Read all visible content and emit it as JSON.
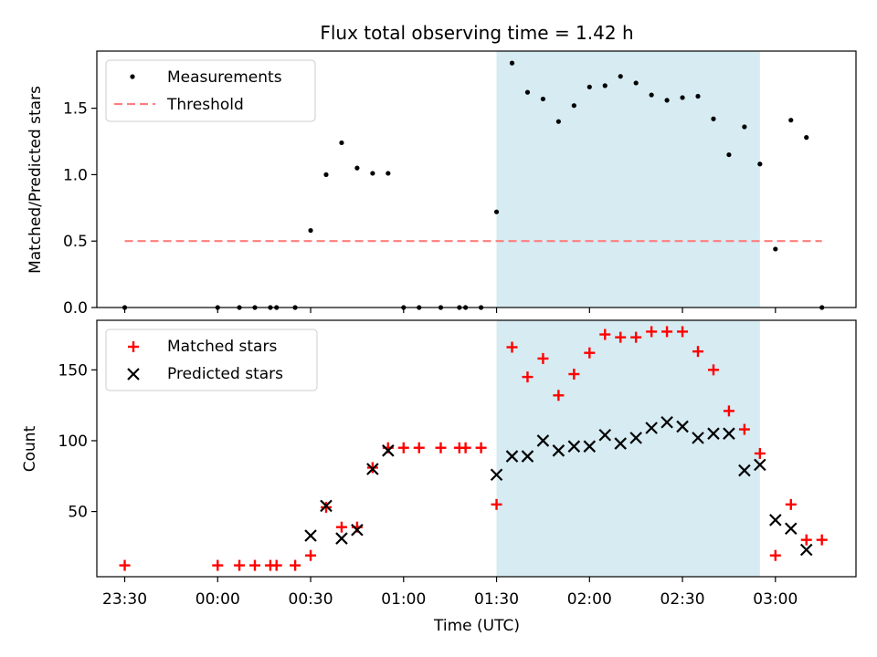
{
  "chart_data": [
    {
      "type": "scatter",
      "title": "Flux total observing time = 1.42 h",
      "xlabel": "",
      "ylabel": "Matched/Predicted stars",
      "ylim": [
        0,
        1.93
      ],
      "xlim": [
        "23:21",
        "03:26"
      ],
      "yticks": [
        0.0,
        0.5,
        1.0,
        1.5
      ],
      "ytick_labels": [
        "0.0",
        "0.5",
        "1.0",
        "1.5"
      ],
      "shaded_interval": {
        "start": "01:30",
        "end": "02:55",
        "color": "#add8e6"
      },
      "legend": {
        "placement": "top-left",
        "entries": [
          "Measurements",
          "Threshold"
        ]
      },
      "series": [
        {
          "name": "Measurements",
          "kind": "scatter",
          "color": "#000000",
          "points": [
            [
              "23:30",
              0.0
            ],
            [
              "00:00",
              0.0
            ],
            [
              "00:07",
              0.0
            ],
            [
              "00:12",
              0.0
            ],
            [
              "00:17",
              0.0
            ],
            [
              "00:19",
              0.0
            ],
            [
              "00:25",
              0.0
            ],
            [
              "00:30",
              0.58
            ],
            [
              "00:35",
              1.0
            ],
            [
              "00:40",
              1.24
            ],
            [
              "00:45",
              1.05
            ],
            [
              "00:50",
              1.01
            ],
            [
              "00:55",
              1.01
            ],
            [
              "01:00",
              0.0
            ],
            [
              "01:05",
              0.0
            ],
            [
              "01:12",
              0.0
            ],
            [
              "01:18",
              0.0
            ],
            [
              "01:20",
              0.0
            ],
            [
              "01:25",
              0.0
            ],
            [
              "01:30",
              0.72
            ],
            [
              "01:35",
              1.84
            ],
            [
              "01:40",
              1.62
            ],
            [
              "01:45",
              1.57
            ],
            [
              "01:50",
              1.4
            ],
            [
              "01:55",
              1.52
            ],
            [
              "02:00",
              1.66
            ],
            [
              "02:05",
              1.67
            ],
            [
              "02:10",
              1.74
            ],
            [
              "02:15",
              1.69
            ],
            [
              "02:20",
              1.6
            ],
            [
              "02:25",
              1.56
            ],
            [
              "02:30",
              1.58
            ],
            [
              "02:35",
              1.59
            ],
            [
              "02:40",
              1.42
            ],
            [
              "02:45",
              1.15
            ],
            [
              "02:50",
              1.36
            ],
            [
              "02:55",
              1.08
            ],
            [
              "03:00",
              0.44
            ],
            [
              "03:05",
              1.41
            ],
            [
              "03:10",
              1.28
            ],
            [
              "03:15",
              0.0
            ]
          ]
        },
        {
          "name": "Threshold",
          "kind": "dashed-line",
          "color": "#ff7f7f",
          "points": [
            [
              "23:30",
              0.5
            ],
            [
              "03:15",
              0.5
            ]
          ]
        }
      ]
    },
    {
      "type": "scatter",
      "title": "",
      "xlabel": "Time (UTC)",
      "ylabel": "Count",
      "ylim": [
        4,
        185
      ],
      "xlim": [
        "23:21",
        "03:26"
      ],
      "yticks": [
        50,
        100,
        150
      ],
      "ytick_labels": [
        "50",
        "100",
        "150"
      ],
      "xticks": [
        "23:30",
        "00:00",
        "00:30",
        "01:00",
        "01:30",
        "02:00",
        "02:30",
        "03:00"
      ],
      "shaded_interval": {
        "start": "01:30",
        "end": "02:55",
        "color": "#add8e6"
      },
      "legend": {
        "placement": "top-left",
        "entries": [
          "Matched stars",
          "Predicted stars"
        ]
      },
      "series": [
        {
          "name": "Matched stars",
          "kind": "plus",
          "color": "#ff0000",
          "points": [
            [
              "23:30",
              12
            ],
            [
              "00:00",
              12
            ],
            [
              "00:07",
              12
            ],
            [
              "00:12",
              12
            ],
            [
              "00:17",
              12
            ],
            [
              "00:19",
              12
            ],
            [
              "00:25",
              12
            ],
            [
              "00:30",
              19
            ],
            [
              "00:35",
              53
            ],
            [
              "00:40",
              39
            ],
            [
              "00:45",
              39
            ],
            [
              "00:50",
              81
            ],
            [
              "00:55",
              95
            ],
            [
              "01:00",
              95
            ],
            [
              "01:05",
              95
            ],
            [
              "01:12",
              95
            ],
            [
              "01:18",
              95
            ],
            [
              "01:20",
              95
            ],
            [
              "01:25",
              95
            ],
            [
              "01:30",
              55
            ],
            [
              "01:35",
              166
            ],
            [
              "01:40",
              145
            ],
            [
              "01:45",
              158
            ],
            [
              "01:50",
              132
            ],
            [
              "01:55",
              147
            ],
            [
              "02:00",
              162
            ],
            [
              "02:05",
              175
            ],
            [
              "02:10",
              173
            ],
            [
              "02:15",
              173
            ],
            [
              "02:20",
              177
            ],
            [
              "02:25",
              177
            ],
            [
              "02:30",
              177
            ],
            [
              "02:35",
              163
            ],
            [
              "02:40",
              150
            ],
            [
              "02:45",
              121
            ],
            [
              "02:50",
              108
            ],
            [
              "02:55",
              91
            ],
            [
              "03:00",
              19
            ],
            [
              "03:05",
              55
            ],
            [
              "03:10",
              30
            ],
            [
              "03:15",
              30
            ]
          ]
        },
        {
          "name": "Predicted stars",
          "kind": "x",
          "color": "#000000",
          "points": [
            [
              "00:30",
              33
            ],
            [
              "00:35",
              54
            ],
            [
              "00:40",
              31
            ],
            [
              "00:45",
              37
            ],
            [
              "00:50",
              80
            ],
            [
              "00:55",
              93
            ],
            [
              "01:30",
              76
            ],
            [
              "01:35",
              89
            ],
            [
              "01:40",
              89
            ],
            [
              "01:45",
              100
            ],
            [
              "01:50",
              93
            ],
            [
              "01:55",
              96
            ],
            [
              "02:00",
              96
            ],
            [
              "02:05",
              104
            ],
            [
              "02:10",
              98
            ],
            [
              "02:15",
              102
            ],
            [
              "02:20",
              109
            ],
            [
              "02:25",
              113
            ],
            [
              "02:30",
              110
            ],
            [
              "02:35",
              102
            ],
            [
              "02:40",
              105
            ],
            [
              "02:45",
              105
            ],
            [
              "02:50",
              79
            ],
            [
              "02:55",
              83
            ],
            [
              "03:00",
              44
            ],
            [
              "03:05",
              38
            ],
            [
              "03:10",
              23
            ]
          ]
        }
      ]
    }
  ]
}
